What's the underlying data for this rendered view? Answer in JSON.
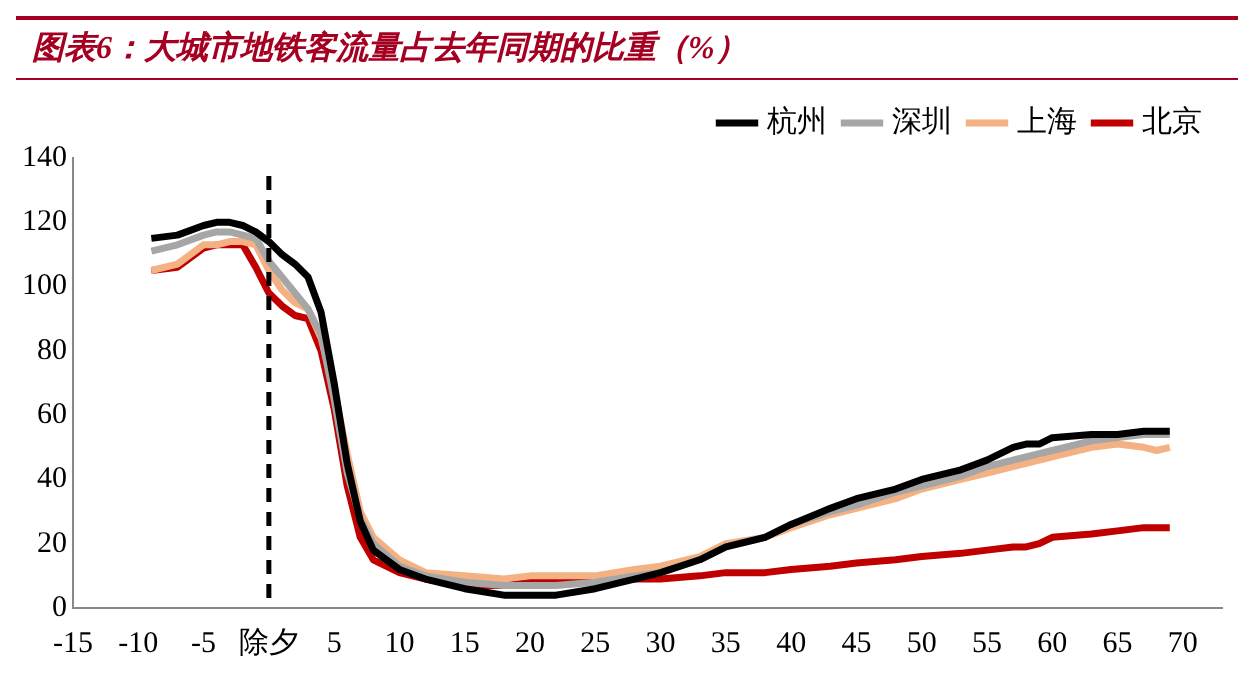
{
  "chart_data": {
    "type": "line",
    "title": "图表6：大城市地铁客流量占去年同期的比重（%）",
    "x": [
      -9,
      -7,
      -5,
      -4,
      -3,
      -2,
      -1,
      0,
      1,
      2,
      3,
      4,
      5,
      6,
      7,
      8,
      10,
      12,
      15,
      18,
      20,
      22,
      25,
      28,
      30,
      33,
      35,
      38,
      40,
      43,
      45,
      48,
      50,
      53,
      55,
      57,
      58,
      59,
      60,
      63,
      65,
      67,
      68,
      69
    ],
    "series": [
      {
        "name": "杭州",
        "color": "#000000",
        "values": [
          115,
          116,
          119,
          120,
          120,
          119,
          117,
          114,
          110,
          107,
          103,
          92,
          70,
          45,
          27,
          18,
          12,
          9,
          6,
          4,
          4,
          4,
          6,
          9,
          11,
          15,
          19,
          22,
          26,
          31,
          34,
          37,
          40,
          43,
          46,
          50,
          51,
          51,
          53,
          54,
          54,
          55,
          55,
          55
        ]
      },
      {
        "name": "深圳",
        "color": "#a6a6a6",
        "values": [
          111,
          113,
          116,
          117,
          117,
          116,
          115,
          108,
          103,
          98,
          93,
          85,
          65,
          42,
          28,
          20,
          13,
          10,
          8,
          7,
          7,
          7,
          8,
          10,
          11,
          15,
          19,
          22,
          26,
          30,
          32,
          36,
          38,
          41,
          44,
          46,
          47,
          48,
          49,
          52,
          53,
          54,
          54,
          54
        ]
      },
      {
        "name": "上海",
        "color": "#f4b183",
        "values": [
          105,
          107,
          113,
          113,
          114,
          114,
          113,
          105,
          99,
          95,
          93,
          84,
          68,
          48,
          30,
          22,
          15,
          11,
          10,
          9,
          10,
          10,
          10,
          12,
          13,
          16,
          20,
          22,
          25,
          29,
          31,
          34,
          37,
          40,
          42,
          44,
          45,
          46,
          47,
          50,
          51,
          50,
          49,
          50
        ]
      },
      {
        "name": "北京",
        "color": "#c00000",
        "values": [
          105,
          106,
          112,
          113,
          113,
          113,
          106,
          98,
          94,
          91,
          90,
          80,
          62,
          38,
          22,
          15,
          11,
          9,
          7,
          7,
          8,
          8,
          8,
          9,
          9,
          10,
          11,
          11,
          12,
          13,
          14,
          15,
          16,
          17,
          18,
          19,
          19,
          20,
          22,
          23,
          24,
          25,
          25,
          25
        ]
      }
    ],
    "xlim": [
      -15,
      73
    ],
    "xticks": [
      -15,
      -10,
      -5,
      {
        "value": 0,
        "label": "除夕"
      },
      5,
      10,
      15,
      20,
      25,
      30,
      35,
      40,
      45,
      50,
      55,
      60,
      65,
      70
    ],
    "ylim": [
      0,
      140
    ],
    "yticks": [
      0,
      20,
      40,
      60,
      80,
      100,
      120,
      140
    ],
    "ref_lines": [
      {
        "axis": "x",
        "value": 0,
        "color": "#000000",
        "line_style": "dashed"
      }
    ],
    "grid": false,
    "legend": "top",
    "marker": "none",
    "line_style": "solid"
  }
}
